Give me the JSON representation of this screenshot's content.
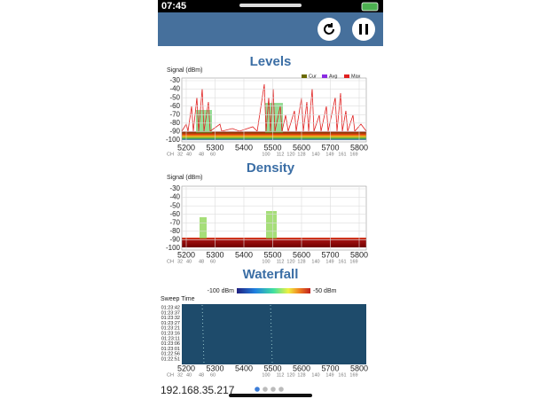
{
  "status_bar": {
    "time": "07:45"
  },
  "levels": {
    "title": "Levels",
    "y_label": "Signal (dBm)",
    "legend": [
      "Cur",
      "Avg",
      "Max"
    ],
    "yticks": [
      -30,
      -40,
      -50,
      -60,
      -70,
      -80,
      -90,
      -100
    ],
    "xticks": [
      5200,
      5300,
      5400,
      5500,
      5600,
      5700,
      5800
    ],
    "channel_prefix": "CH",
    "channels": [
      32,
      40,
      48,
      60,
      100,
      112,
      120,
      128,
      140,
      149,
      161,
      169
    ]
  },
  "density": {
    "title": "Density",
    "y_label": "Signal (dBm)",
    "yticks": [
      -30,
      -40,
      -50,
      -60,
      -70,
      -80,
      -90,
      -100
    ],
    "xticks": [
      5200,
      5300,
      5400,
      5500,
      5600,
      5700,
      5800
    ],
    "channel_prefix": "CH",
    "channels": [
      32,
      40,
      48,
      60,
      100,
      112,
      120,
      128,
      140,
      149,
      161,
      169
    ]
  },
  "waterfall": {
    "title": "Waterfall",
    "scale_min": "-100 dBm",
    "scale_max": "-50 dBm",
    "y_label": "Sweep Time",
    "times": [
      "01:23:42",
      "01:23:37",
      "01:23:32",
      "01:23:27",
      "01:23:21",
      "01:23:16",
      "01:23:11",
      "01:23:06",
      "01:23:01",
      "01:22:56",
      "01:22:51"
    ],
    "xticks": [
      5200,
      5300,
      5400,
      5500,
      5600,
      5700,
      5800
    ],
    "channel_prefix": "CH",
    "channels": [
      32,
      40,
      48,
      60,
      100,
      112,
      120,
      128,
      140,
      149,
      161,
      169
    ]
  },
  "footer": {
    "ip": "192.168.35.217"
  }
}
